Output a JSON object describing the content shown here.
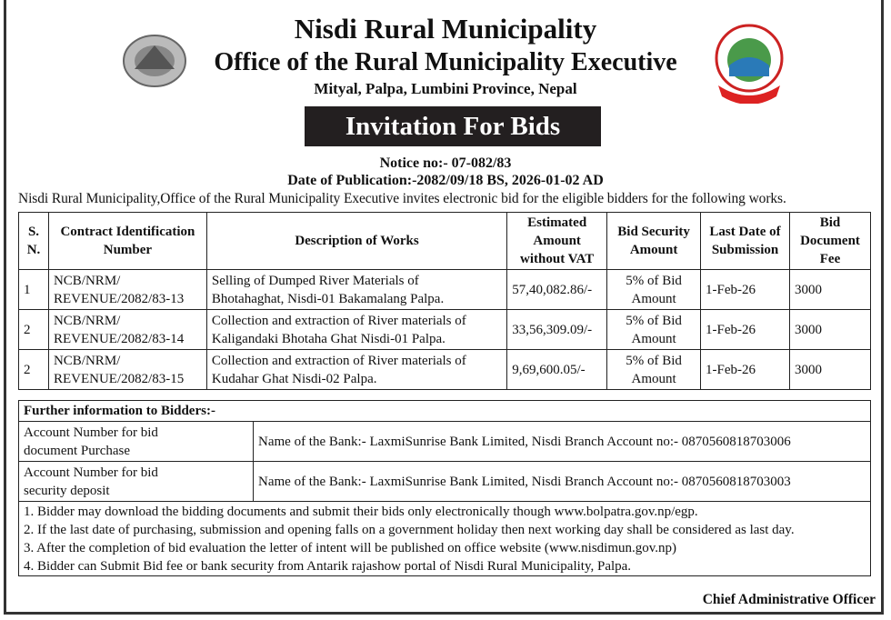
{
  "header": {
    "title": "Nisdi Rural Municipality",
    "office": "Office of the Rural Municipality Executive",
    "address": "Mityal, Palpa, Lumbini Province, Nepal",
    "banner": "Invitation For Bids",
    "notice": "Notice no:- 07-082/83",
    "date": "Date of Publication:-2082/09/18  BS, 2026-01-02 AD",
    "intro": "Nisdi Rural Municipality,Office of the Rural Municipality Executive invites electronic bid for the eligible bidders for the following works.",
    "logo_left": "government-emblem",
    "logo_right": "Nisdi Rural Municipality Palpa"
  },
  "works": {
    "headers": [
      "S. N.",
      "Contract Identification Number",
      "Description of Works",
      "Estimated Amount without VAT",
      "Bid Security Amount",
      "Last Date of Submission",
      "Bid Document Fee"
    ],
    "rows": [
      {
        "sn": "1",
        "id1": "NCB/NRM/",
        "id2": "REVENUE/2082/83-13",
        "desc1": "Selling of Dumped River Materials of",
        "desc2": "Bhotahaghat, Nisdi-01 Bakamalang Palpa.",
        "amount": "57,40,082.86/-",
        "security1": "5% of Bid",
        "security2": "Amount",
        "date": "1-Feb-26",
        "fee": "3000"
      },
      {
        "sn": "2",
        "id1": "NCB/NRM/",
        "id2": "REVENUE/2082/83-14",
        "desc1": " Collection and extraction of River materials of",
        "desc2": "Kaligandaki Bhotaha Ghat Nisdi-01 Palpa.",
        "amount": "33,56,309.09/-",
        "security1": "5% of Bid",
        "security2": "Amount",
        "date": "1-Feb-26",
        "fee": "3000"
      },
      {
        "sn": "2",
        "id1": "NCB/NRM/",
        "id2": "REVENUE/2082/83-15",
        "desc1": " Collection and extraction of River materials of",
        "desc2": "Kudahar Ghat Nisdi-02 Palpa.",
        "amount": "9,69,600.05/-",
        "security1": "5% of Bid",
        "security2": "Amount",
        "date": "1-Feb-26",
        "fee": "3000"
      }
    ]
  },
  "info": {
    "title": "Further information to Bidders:-",
    "accounts": [
      {
        "label1": "Account Number for bid",
        "label2": "document Purchase",
        "value": "Name of the Bank:- LaxmiSunrise Bank Limited, Nisdi Branch Account no:- 0870560818703006"
      },
      {
        "label1": "Account Number for bid",
        "label2": "security deposit",
        "value": "Name of the Bank:- LaxmiSunrise Bank Limited, Nisdi Branch Account no:- 0870560818703003"
      }
    ],
    "notes": [
      "1. Bidder may download the bidding documents and submit their bids only electronically though www.bolpatra.gov.np/egp.",
      "2. If the last date of purchasing, submission and opening falls on a government holiday then next working day shall be considered as last day.",
      "3. After the completion of bid evaluation the letter of intent will be published on office website (www.nisdimun.gov.np)",
      "4. Bidder can Submit Bid fee or bank security from Antarik rajashow portal of Nisdi Rural Municipality, Palpa."
    ]
  },
  "signature": "Chief Administrative Officer"
}
